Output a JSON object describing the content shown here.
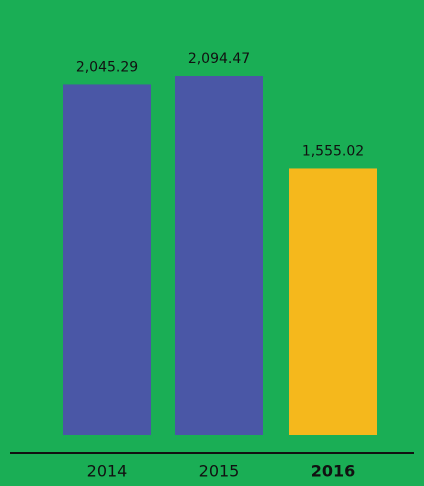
{
  "chart_data": {
    "type": "bar",
    "categories": [
      "2014",
      "2015",
      "2016"
    ],
    "values": [
      2045.29,
      2094.47,
      1555.02
    ],
    "value_labels": [
      "2,045.29",
      "2,094.47",
      "1,555.02"
    ],
    "colors": [
      "#4a57a6",
      "#4a57a6",
      "#f5b81c"
    ]
  }
}
